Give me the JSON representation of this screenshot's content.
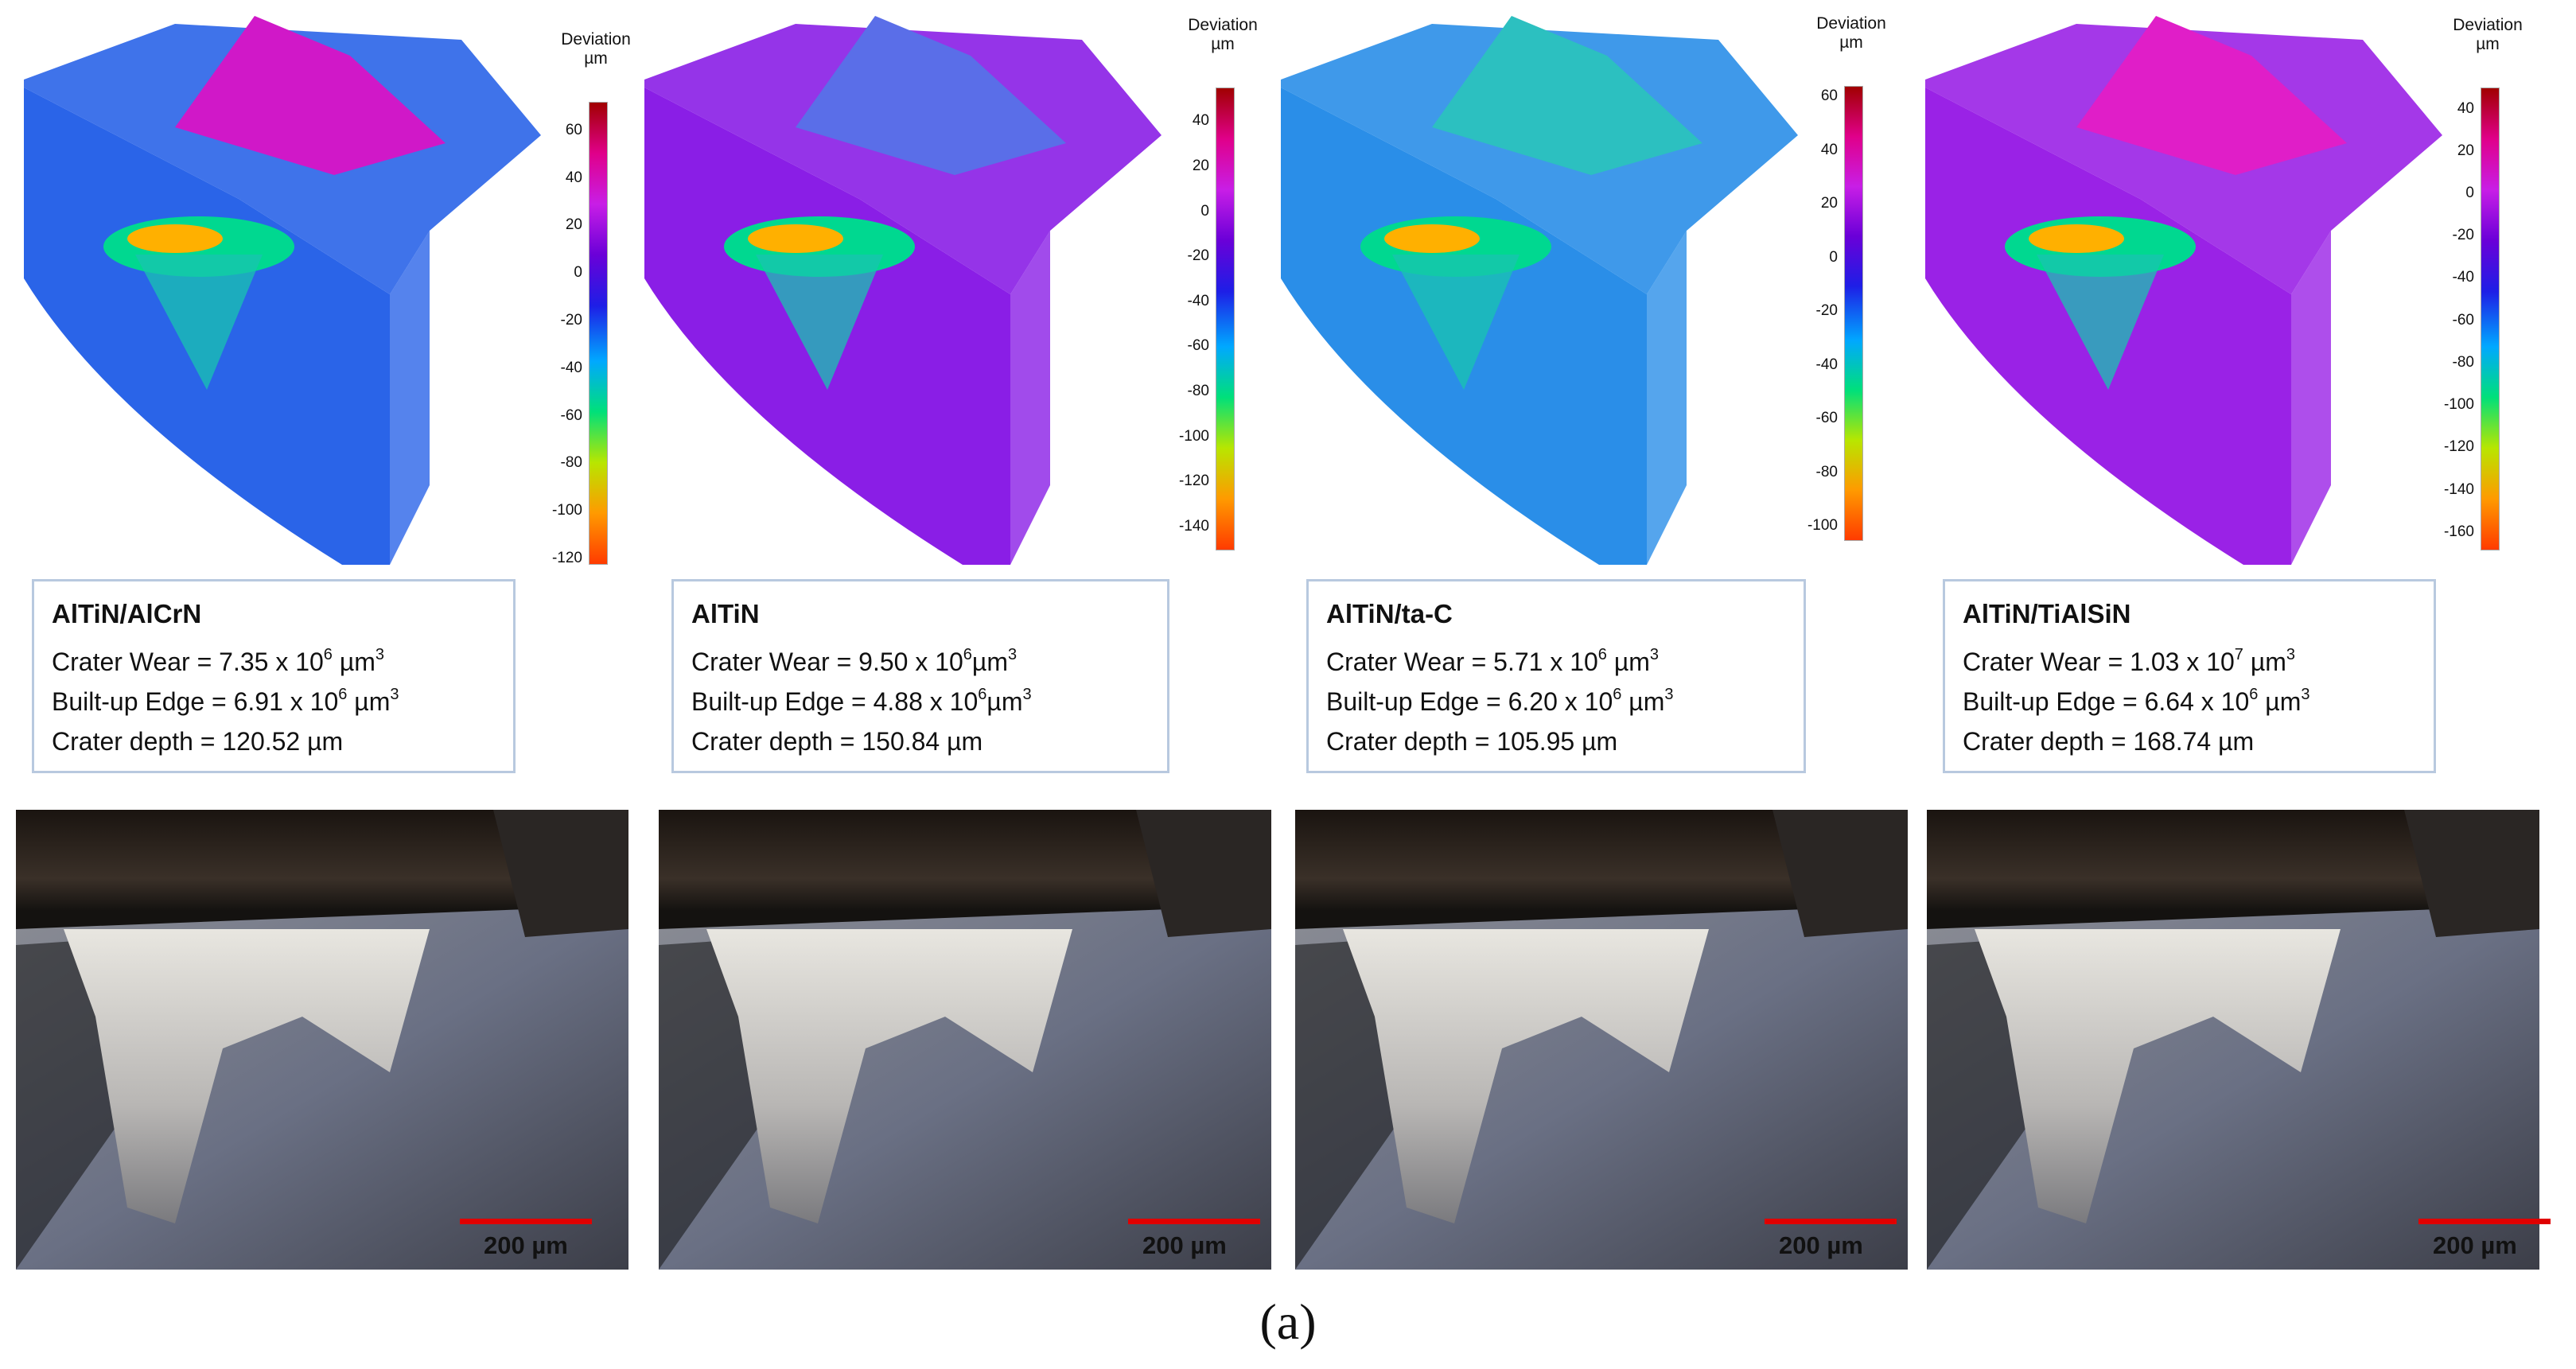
{
  "figure": {
    "caption": "(a)",
    "scale_title": "Deviation",
    "scale_unit": "µm",
    "scalebar_label": "200 µm",
    "colormap": [
      "#a00000",
      "#e0008a",
      "#c81ee6",
      "#6a00d8",
      "#1e1ee6",
      "#00a8ff",
      "#00e07a",
      "#b8e600",
      "#ff9a00",
      "#ff3b00"
    ],
    "panels": [
      {
        "coating": "AlTiN/AlCrN",
        "crater_wear_label": "Crater Wear = ",
        "crater_wear_value": "7.35 x 10",
        "crater_wear_exp": "6",
        "built_up_label": "Built-up Edge = ",
        "built_up_value": "6.91 x 10",
        "built_up_exp": "6",
        "unit": " µm",
        "unit_exp": "3",
        "crater_depth_label": "Crater depth = ",
        "crater_depth_value": "120.52 µm",
        "scale_ticks": [
          "60",
          "40",
          "20",
          "0",
          "-20",
          "-40",
          "-60",
          "-80",
          "-100",
          "-120"
        ],
        "scale_range": [
          72,
          -122
        ],
        "dominant_color": "#2a64e8",
        "top_color": "#d018c8"
      },
      {
        "coating": "AlTiN",
        "crater_wear_label": "Crater Wear = ",
        "crater_wear_value": "9.50 x 10",
        "crater_wear_exp": "6",
        "built_up_label": "Built-up Edge = ",
        "built_up_value": "4.88 x 10",
        "built_up_exp": "6",
        "unit": "µm",
        "unit_exp": "3",
        "crater_depth_label": "Crater depth = ",
        "crater_depth_value": "150.84 µm",
        "scale_ticks": [
          "40",
          "20",
          "0",
          "-20",
          "-40",
          "-60",
          "-80",
          "-100",
          "-120",
          "-140"
        ],
        "scale_range": [
          55,
          -150
        ],
        "dominant_color": "#8a1ee6",
        "top_color": "#5a6ee8"
      },
      {
        "coating": "AlTiN/ta-C",
        "crater_wear_label": "Crater Wear = ",
        "crater_wear_value": "5.71 x 10",
        "crater_wear_exp": "6",
        "built_up_label": "Built-up Edge = ",
        "built_up_value": "6.20 x 10",
        "built_up_exp": "6",
        "unit": " µm",
        "unit_exp": "3",
        "crater_depth_label": "Crater depth = ",
        "crater_depth_value": "105.95 µm",
        "scale_ticks": [
          "60",
          "40",
          "20",
          "0",
          "-20",
          "-40",
          "-60",
          "-80",
          "-100"
        ],
        "scale_range": [
          64,
          -105
        ],
        "dominant_color": "#2a8ee8",
        "top_color": "#2cc0c0"
      },
      {
        "coating": "AlTiN/TiAlSiN",
        "crater_wear_label": "Crater Wear = ",
        "crater_wear_value": "1.03 x 10",
        "crater_wear_exp": "7",
        "built_up_label": "Built-up Edge = ",
        "built_up_value": "6.64 x 10",
        "built_up_exp": "6",
        "unit": " µm",
        "unit_exp": "3",
        "crater_depth_label": "Crater depth = ",
        "crater_depth_value": "168.74 µm",
        "scale_ticks": [
          "40",
          "20",
          "0",
          "-20",
          "-40",
          "-60",
          "-80",
          "-100",
          "-120",
          "-140",
          "-160"
        ],
        "scale_range": [
          50,
          -168
        ],
        "dominant_color": "#9a22e6",
        "top_color": "#e01ec8"
      }
    ]
  }
}
